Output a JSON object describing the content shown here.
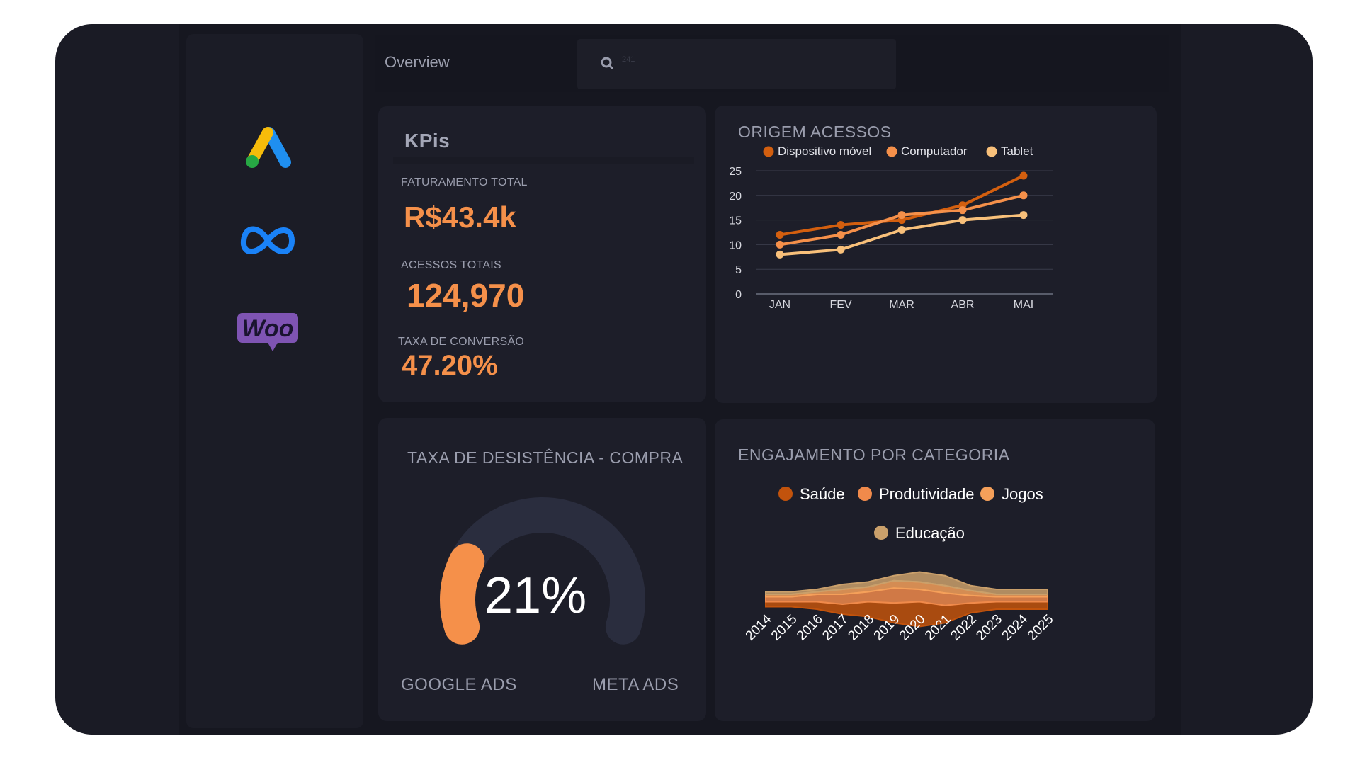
{
  "nav": {
    "tab_overview": "Overview",
    "search_hint": "241",
    "logos": [
      {
        "name": "google-ads",
        "icon": "google-ads-icon"
      },
      {
        "name": "meta",
        "icon": "meta-icon"
      },
      {
        "name": "woocommerce",
        "icon": "woocommerce-icon",
        "text": "Woo"
      }
    ]
  },
  "kpis": {
    "title": "KPis",
    "items": [
      {
        "label": "FATURAMENTO TOTAL",
        "value": "R$43.4k"
      },
      {
        "label": "ACESSOS TOTAIS",
        "value": "124,970"
      },
      {
        "label": "TAXA DE CONVERSÃO",
        "value": "47.20%"
      }
    ]
  },
  "gauge": {
    "title": "TAXA DE DESISTÊNCIA - COMPRA",
    "value_label": "21%",
    "fraction": 0.21,
    "left_label": "GOOGLE ADS",
    "right_label": "META ADS"
  },
  "colors": {
    "accent": "#f5904a",
    "series_dark": "#d35f0f",
    "series_mid": "#f5904a",
    "series_light": "#f8c07a",
    "gauge_track": "#2a2d3e"
  },
  "chart_data": [
    {
      "type": "line",
      "title": "ORIGEM ACESSOS",
      "categories": [
        "JAN",
        "FEV",
        "MAR",
        "ABR",
        "MAI"
      ],
      "ylim": [
        0,
        25
      ],
      "yticks": [
        0,
        5,
        10,
        15,
        20,
        25
      ],
      "grid": true,
      "legend_position": "top",
      "series": [
        {
          "name": "Dispositivo móvel",
          "color": "#d35f0f",
          "values": [
            12,
            14,
            15,
            18,
            24
          ]
        },
        {
          "name": "Computador",
          "color": "#f5904a",
          "values": [
            10,
            12,
            16,
            17,
            20
          ]
        },
        {
          "name": "Tablet",
          "color": "#f8c07a",
          "values": [
            8,
            9,
            13,
            15,
            16
          ]
        }
      ]
    },
    {
      "type": "area",
      "title": "ENGAJAMENTO POR CATEGORIA",
      "categories": [
        "2014",
        "2015",
        "2016",
        "2017",
        "2018",
        "2019",
        "2020",
        "2021",
        "2022",
        "2023",
        "2024",
        "2025"
      ],
      "legend_position": "top",
      "stacking": "streamgraph",
      "series": [
        {
          "name": "Saúde",
          "color": "#c2530c",
          "values": [
            1,
            1,
            1.5,
            2,
            3,
            4,
            5,
            3.5,
            2,
            1.5,
            1.5,
            1.5
          ]
        },
        {
          "name": "Produtividade",
          "color": "#f08a4b",
          "values": [
            1,
            1,
            1.5,
            2,
            2,
            3,
            2.5,
            2.5,
            1.5,
            1,
            1,
            1
          ]
        },
        {
          "name": "Jogos",
          "color": "#f5a05a",
          "values": [
            0.5,
            0.5,
            0.5,
            1,
            1,
            1.5,
            1.5,
            1.5,
            1,
            0.5,
            0.5,
            0.5
          ]
        },
        {
          "name": "Educação",
          "color": "#caa06b",
          "values": [
            0.5,
            0.5,
            0.5,
            1,
            1,
            1,
            2,
            2,
            1,
            1,
            1,
            1
          ]
        }
      ]
    }
  ]
}
